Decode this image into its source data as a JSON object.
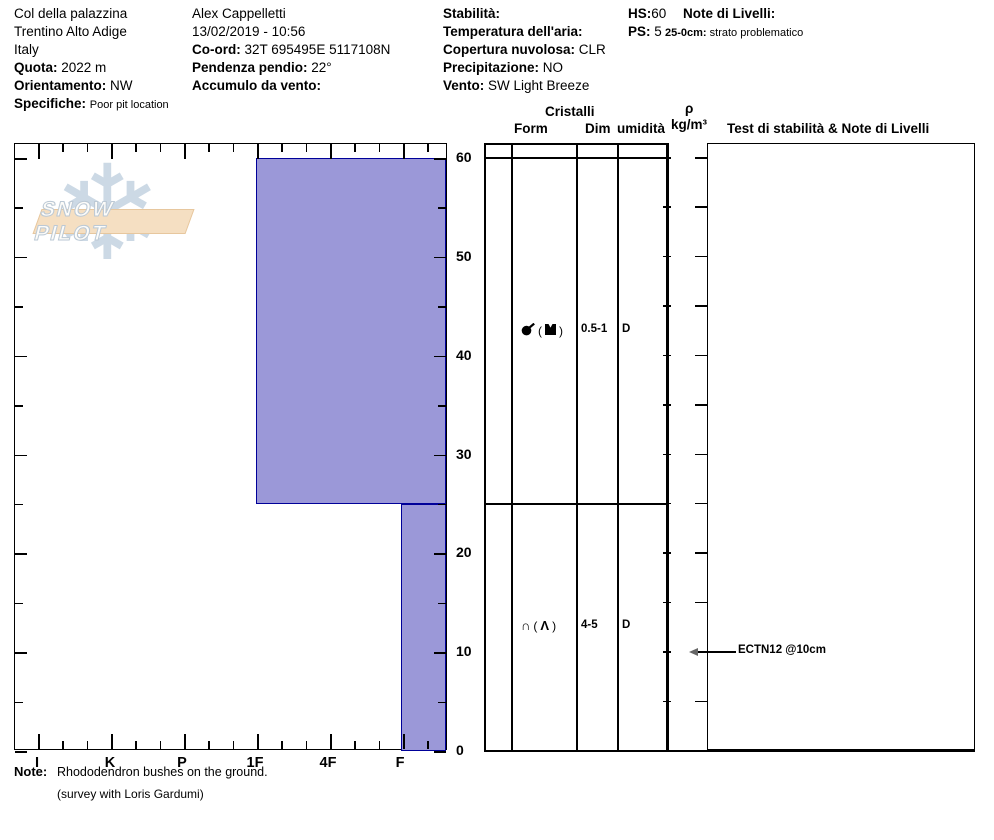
{
  "header": {
    "location": {
      "line1": "Col della palazzina",
      "line2": "Trentino Alto Adige",
      "line3": "Italy",
      "quota_label": "Quota:",
      "quota_value": "2022 m",
      "orientamento_label": "Orientamento:",
      "orientamento_value": "NW",
      "specifiche_label": "Specifiche:",
      "specifiche_value": "Poor pit location"
    },
    "observer": {
      "name": "Alex Cappelletti",
      "datetime": "13/02/2019 - 10:56",
      "coord_label": "Co-ord:",
      "coord_value": "32T 695495E 5117108N",
      "pendenza_label": "Pendenza pendio:",
      "pendenza_value": "22°",
      "accumulo_label": "Accumulo da vento:",
      "accumulo_value": ""
    },
    "conditions": {
      "stabilita_label": "Stabilità:",
      "stabilita_value": "",
      "temperatura_label": "Temperatura dell'aria:",
      "temperatura_value": "",
      "copertura_label": "Copertura nuvolosa:",
      "copertura_value": "CLR",
      "precipitazione_label": "Precipitazione:",
      "precipitazione_value": "NO",
      "vento_label": "Vento:",
      "vento_value": "SW Light Breeze"
    },
    "measures": {
      "hs_label": "HS:",
      "hs_value": "60",
      "ps_label": "PS:",
      "ps_value": "5"
    },
    "level_notes": {
      "title": "Note di Livelli:",
      "entry_range": "25-0cm:",
      "entry_text": "strato problematico"
    }
  },
  "watermark": {
    "text": "SNOW PILOT",
    "snowflake_icon": "❄"
  },
  "chart_data": {
    "type": "bar",
    "subtype": "snow-hardness-profile",
    "hardness_categories": [
      "I",
      "K",
      "P",
      "1F",
      "4F",
      "F"
    ],
    "depth_ticks": [
      0,
      10,
      20,
      30,
      40,
      50,
      60
    ],
    "depth_minor_step_cm": 5,
    "depth_unit": "cm",
    "total_depth_cm": 60,
    "layers": [
      {
        "top_cm": 60,
        "bottom_cm": 25,
        "hardness": "1F",
        "form_primary_icon": "df-ball-tail-icon",
        "form_secondary_icon": "notched-square-icon",
        "dim_mm": "0.5-1",
        "wetness": "D"
      },
      {
        "top_cm": 25,
        "bottom_cm": 0,
        "hardness": "F",
        "form_primary_icon": "arch-icon",
        "form_secondary_icon": "caret-icon",
        "dim_mm": "4-5",
        "wetness": "D"
      }
    ],
    "annotations": [
      {
        "text": "ECTN12 @10cm",
        "depth_cm": 10
      }
    ],
    "fill_color": "#9b98d8",
    "layer_border_color": "#000099",
    "legend_position": "none",
    "grid": false
  },
  "table": {
    "cristalli_header": "Cristalli",
    "col_form": "Form",
    "col_dim": "Dim",
    "col_umidita": "umidità",
    "rho_symbol": "ρ",
    "rho_units": "kg/m³",
    "test_header": "Test di stabilità & Note di Livelli",
    "form_paren_open": "(",
    "form_paren_close": ")"
  },
  "note": {
    "label": "Note:",
    "line1": "Rhododendron bushes on the ground.",
    "line2": "(survey with Loris Gardumi)"
  }
}
